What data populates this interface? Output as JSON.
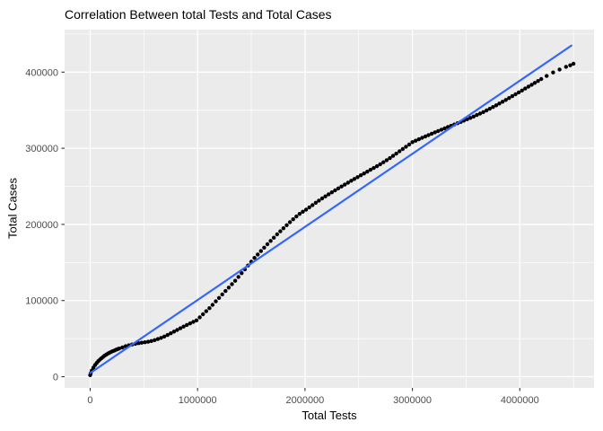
{
  "chart_data": {
    "type": "scatter",
    "title": "Correlation Between total Tests and Total Cases",
    "xlabel": "Total Tests",
    "ylabel": "Total Cases",
    "grid": true,
    "legend": false,
    "xlim": [
      -238000,
      4691000
    ],
    "ylim": [
      -14700,
      455800
    ],
    "x_ticks": [
      0,
      1000000,
      2000000,
      3000000,
      4000000
    ],
    "x_tick_labels": [
      "0",
      "1000000",
      "2000000",
      "3000000",
      "4000000"
    ],
    "y_ticks": [
      0,
      100000,
      200000,
      300000,
      400000
    ],
    "y_tick_labels": [
      "0",
      "100000",
      "200000",
      "300000",
      "400000"
    ],
    "x_minor_ticks": [
      500000,
      1500000,
      2500000,
      3500000,
      4500000
    ],
    "y_minor_ticks": [
      50000,
      150000,
      250000,
      350000,
      450000
    ],
    "colors": {
      "panel_bg": "#EBEBEB",
      "grid": "#FFFFFF",
      "tick_mark": "#333333",
      "tick_text": "#4D4D4D",
      "point": "#000000",
      "trend": "#3366FF"
    },
    "series": [
      {
        "name": "observed data",
        "kind": "points",
        "color": "#000000",
        "points": [
          [
            0,
            2000
          ],
          [
            5000,
            4500
          ],
          [
            15000,
            8000
          ],
          [
            30000,
            12000
          ],
          [
            45000,
            15200
          ],
          [
            60000,
            18000
          ],
          [
            75000,
            20400
          ],
          [
            90000,
            22500
          ],
          [
            105000,
            24300
          ],
          [
            120000,
            26000
          ],
          [
            135000,
            27600
          ],
          [
            150000,
            29000
          ],
          [
            165000,
            30300
          ],
          [
            180000,
            31500
          ],
          [
            195000,
            32500
          ],
          [
            210000,
            33500
          ],
          [
            225000,
            34400
          ],
          [
            240000,
            35300
          ],
          [
            255000,
            36200
          ],
          [
            270000,
            37000
          ],
          [
            300000,
            38500
          ],
          [
            330000,
            40000
          ],
          [
            360000,
            41200
          ],
          [
            390000,
            42300
          ],
          [
            420000,
            43200
          ],
          [
            450000,
            44000
          ],
          [
            480000,
            44600
          ],
          [
            510000,
            45200
          ],
          [
            540000,
            45900
          ],
          [
            570000,
            46800
          ],
          [
            600000,
            48000
          ],
          [
            630000,
            49400
          ],
          [
            660000,
            51000
          ],
          [
            690000,
            52800
          ],
          [
            720000,
            54800
          ],
          [
            750000,
            57000
          ],
          [
            780000,
            59200
          ],
          [
            810000,
            61400
          ],
          [
            840000,
            63600
          ],
          [
            870000,
            65800
          ],
          [
            900000,
            68000
          ],
          [
            930000,
            70000
          ],
          [
            960000,
            72000
          ],
          [
            990000,
            74000
          ],
          [
            1020000,
            78000
          ],
          [
            1050000,
            82000
          ],
          [
            1080000,
            86000
          ],
          [
            1110000,
            90000
          ],
          [
            1140000,
            94400
          ],
          [
            1170000,
            99000
          ],
          [
            1200000,
            103500
          ],
          [
            1230000,
            108000
          ],
          [
            1260000,
            112500
          ],
          [
            1290000,
            117000
          ],
          [
            1320000,
            121500
          ],
          [
            1350000,
            126000
          ],
          [
            1380000,
            131000
          ],
          [
            1410000,
            136000
          ],
          [
            1440000,
            141000
          ],
          [
            1470000,
            146000
          ],
          [
            1500000,
            151000
          ],
          [
            1530000,
            156000
          ],
          [
            1560000,
            160500
          ],
          [
            1590000,
            165000
          ],
          [
            1620000,
            169500
          ],
          [
            1650000,
            174000
          ],
          [
            1680000,
            178300
          ],
          [
            1710000,
            182600
          ],
          [
            1740000,
            186900
          ],
          [
            1770000,
            191000
          ],
          [
            1800000,
            195000
          ],
          [
            1830000,
            199000
          ],
          [
            1860000,
            203000
          ],
          [
            1890000,
            206800
          ],
          [
            1920000,
            210400
          ],
          [
            1950000,
            213800
          ],
          [
            1980000,
            216600
          ],
          [
            2010000,
            219400
          ],
          [
            2040000,
            222400
          ],
          [
            2070000,
            225400
          ],
          [
            2100000,
            228400
          ],
          [
            2130000,
            231300
          ],
          [
            2160000,
            234100
          ],
          [
            2190000,
            236800
          ],
          [
            2220000,
            239500
          ],
          [
            2250000,
            242100
          ],
          [
            2280000,
            244700
          ],
          [
            2310000,
            247300
          ],
          [
            2340000,
            249800
          ],
          [
            2370000,
            252300
          ],
          [
            2400000,
            254800
          ],
          [
            2430000,
            257300
          ],
          [
            2460000,
            259700
          ],
          [
            2490000,
            262100
          ],
          [
            2520000,
            264500
          ],
          [
            2550000,
            266900
          ],
          [
            2580000,
            269300
          ],
          [
            2610000,
            271700
          ],
          [
            2640000,
            274100
          ],
          [
            2670000,
            276500
          ],
          [
            2700000,
            279000
          ],
          [
            2730000,
            281600
          ],
          [
            2760000,
            284300
          ],
          [
            2790000,
            287100
          ],
          [
            2820000,
            290000
          ],
          [
            2850000,
            293000
          ],
          [
            2880000,
            296000
          ],
          [
            2910000,
            299000
          ],
          [
            2940000,
            302000
          ],
          [
            2970000,
            305000
          ],
          [
            3000000,
            308000
          ],
          [
            3030000,
            309900
          ],
          [
            3060000,
            311800
          ],
          [
            3090000,
            313700
          ],
          [
            3120000,
            315500
          ],
          [
            3150000,
            317300
          ],
          [
            3180000,
            319100
          ],
          [
            3210000,
            320900
          ],
          [
            3240000,
            322700
          ],
          [
            3270000,
            324400
          ],
          [
            3300000,
            326100
          ],
          [
            3330000,
            327800
          ],
          [
            3360000,
            329500
          ],
          [
            3390000,
            331200
          ],
          [
            3420000,
            332900
          ],
          [
            3450000,
            334600
          ],
          [
            3480000,
            336300
          ],
          [
            3510000,
            338100
          ],
          [
            3540000,
            339900
          ],
          [
            3570000,
            341700
          ],
          [
            3600000,
            343600
          ],
          [
            3630000,
            345600
          ],
          [
            3660000,
            347600
          ],
          [
            3690000,
            349700
          ],
          [
            3720000,
            351900
          ],
          [
            3750000,
            354100
          ],
          [
            3780000,
            356400
          ],
          [
            3810000,
            358700
          ],
          [
            3840000,
            361100
          ],
          [
            3870000,
            363500
          ],
          [
            3900000,
            365900
          ],
          [
            3930000,
            368400
          ],
          [
            3960000,
            370900
          ],
          [
            3990000,
            373400
          ],
          [
            4020000,
            375900
          ],
          [
            4050000,
            378400
          ],
          [
            4080000,
            380900
          ],
          [
            4110000,
            383400
          ],
          [
            4140000,
            385900
          ],
          [
            4170000,
            388400
          ],
          [
            4200000,
            390900
          ],
          [
            4250000,
            395000
          ],
          [
            4310000,
            399500
          ],
          [
            4370000,
            403500
          ],
          [
            4430000,
            407000
          ],
          [
            4470000,
            409000
          ],
          [
            4500000,
            411000
          ]
        ]
      },
      {
        "name": "linear trend",
        "kind": "line",
        "color": "#3366FF",
        "points": [
          [
            0,
            4700
          ],
          [
            4480000,
            434800
          ]
        ]
      }
    ]
  }
}
